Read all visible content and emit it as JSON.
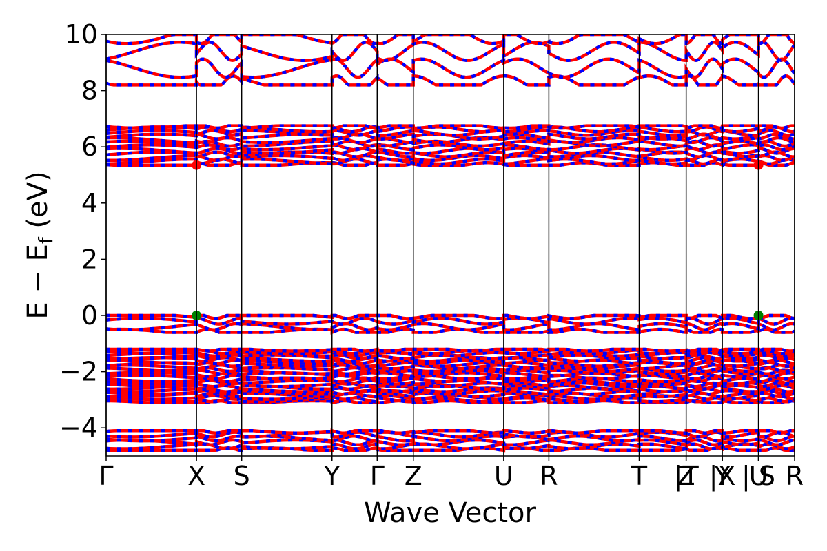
{
  "chart_data": {
    "type": "line",
    "title": "",
    "xlabel": "Wave Vector",
    "ylabel": "E − E",
    "ylabel_subscript": "f",
    "ylabel_unit": "(eV)",
    "ylim": [
      -5,
      10
    ],
    "yticks": [
      -4,
      -2,
      0,
      2,
      4,
      6,
      8,
      10
    ],
    "ytick_labels": [
      "−4",
      "−2",
      "0",
      "2",
      "4",
      "6",
      "8",
      "10"
    ],
    "kpath_labels": [
      "Γ",
      "X",
      "S",
      "Y",
      "Γ",
      "Z",
      "U",
      "R",
      "T",
      "Z",
      "|T",
      "Y",
      "|X",
      "U",
      "| S",
      "R"
    ],
    "kpath_positions": [
      0,
      1,
      1.5,
      2.5,
      3,
      3.4,
      4.4,
      4.9,
      5.9,
      6.42,
      6.42,
      6.82,
      6.82,
      7.22,
      7.22,
      7.62
    ],
    "grid": false,
    "series_colors": [
      "#ff0000",
      "#0000ff"
    ],
    "vbm": {
      "energy": 0.0,
      "k_positions": [
        1,
        7.22
      ],
      "color": "#008000"
    },
    "cbm": {
      "energy": 5.35,
      "k_positions": [
        1,
        7.22
      ],
      "color": "#ff0000"
    },
    "band_groups": [
      {
        "name": "",
        "min": -4.8,
        "max": -4.1,
        "count": 6
      },
      {
        "name": "",
        "min": -3.1,
        "max": -1.2,
        "count": 22
      },
      {
        "name": "",
        "min": -0.6,
        "max": 0.0,
        "count": 4
      },
      {
        "name": "",
        "min": 5.35,
        "max": 6.75,
        "count": 12
      },
      {
        "name": "",
        "min": 8.2,
        "max": 10.0,
        "count": 4
      }
    ]
  }
}
